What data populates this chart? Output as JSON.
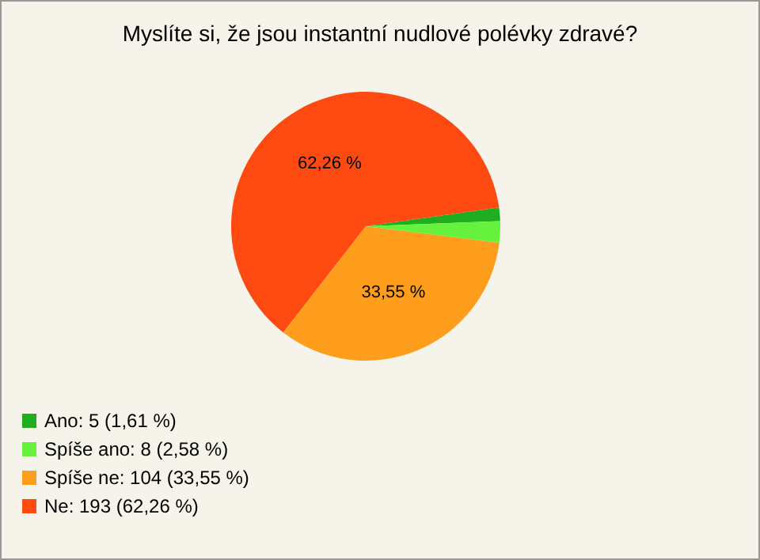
{
  "chart_data": {
    "type": "pie",
    "title": "Myslíte si, že jsou instantní nudlové polévky zdravé?",
    "categories": [
      "Ano: 5 (1,61 %)",
      "Spíše ano: 8 (2,58 %)",
      "Spíše ne: 104 (33,55 %)",
      "Ne: 193 (62,26 %)"
    ],
    "values": [
      1.61,
      2.58,
      33.55,
      62.26
    ],
    "colors": [
      "#1fae1f",
      "#66f23c",
      "#ff9e1c",
      "#ff4a12"
    ],
    "value_labels": [
      null,
      null,
      "33,55 %",
      "62,26 %"
    ],
    "legend": "bottom left"
  }
}
